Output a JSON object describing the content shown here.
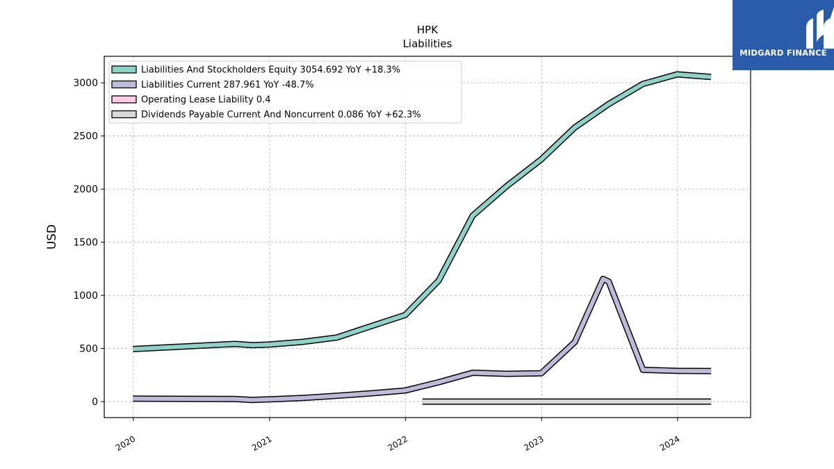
{
  "chart_data": {
    "type": "line",
    "title": "HPK",
    "subtitle": "Liabilities",
    "ylabel": "USD",
    "xlabel": "",
    "ylim": [
      -150,
      3250
    ],
    "xlim": [
      "2019-10-15",
      "2024-07-15"
    ],
    "yticks": [
      0,
      500,
      1000,
      1500,
      2000,
      2500,
      3000
    ],
    "xticks": [
      "2020",
      "2021",
      "2022",
      "2023",
      "2024"
    ],
    "grid": true,
    "legend_position": "top-left",
    "series": [
      {
        "name": "Liabilities And Stockholders Equity",
        "legend": "Liabilities And Stockholders Equity  3054.692 YoY +18.3%",
        "color": "#8dd3c7",
        "x": [
          "2019-12-31",
          "2020-09-30",
          "2020-11-15",
          "2020-12-31",
          "2021-03-31",
          "2021-06-30",
          "2021-09-30",
          "2021-12-31",
          "2022-03-31",
          "2022-06-30",
          "2022-09-30",
          "2022-12-31",
          "2023-03-31",
          "2023-06-30",
          "2023-09-30",
          "2023-12-31",
          "2024-03-31"
        ],
        "values": [
          495,
          543,
          532,
          537,
          563,
          603,
          710,
          815,
          1140,
          1750,
          2030,
          2280,
          2580,
          2800,
          2990,
          3080,
          3055
        ]
      },
      {
        "name": "Liabilities Current",
        "legend": "Liabilities Current  287.961 YoY -48.7%",
        "color": "#bebada",
        "x": [
          "2019-12-31",
          "2020-09-30",
          "2020-11-15",
          "2020-12-31",
          "2021-03-31",
          "2021-06-30",
          "2021-09-30",
          "2021-12-31",
          "2022-03-31",
          "2022-06-30",
          "2022-09-30",
          "2022-12-31",
          "2023-03-31",
          "2023-06-15",
          "2023-06-30",
          "2023-09-30",
          "2023-12-31",
          "2024-03-31"
        ],
        "values": [
          28,
          25,
          16,
          22,
          35,
          55,
          78,
          105,
          183,
          272,
          262,
          267,
          560,
          1155,
          1130,
          300,
          290,
          288
        ]
      },
      {
        "name": "Operating Lease Liability",
        "legend": "Operating Lease Liability  0.4",
        "color": "#fccde5",
        "x": [],
        "values": []
      },
      {
        "name": "Dividends Payable Current And Noncurrent",
        "legend": "Dividends Payable Current And Noncurrent  0.086 YoY +62.3%",
        "color": "#d9d9d9",
        "x": [
          "2022-02-15",
          "2024-03-31"
        ],
        "values": [
          0.1,
          0.086
        ]
      }
    ]
  },
  "watermark": {
    "brand": "MIDGARD FINANCE"
  }
}
